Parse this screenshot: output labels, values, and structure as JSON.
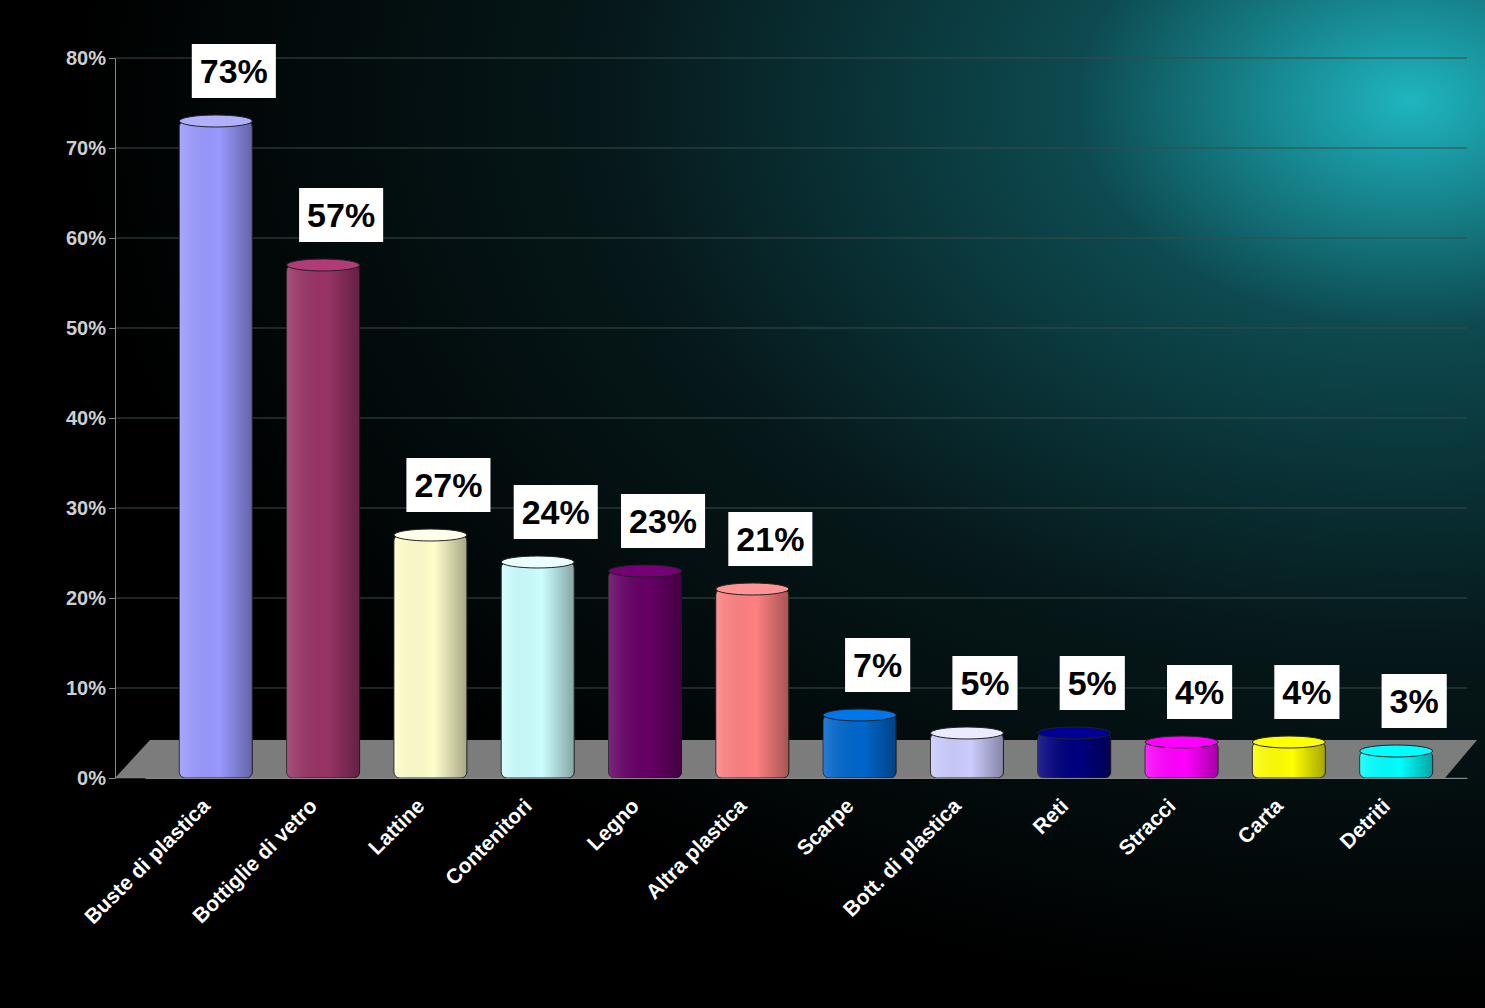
{
  "chart_data": {
    "type": "bar",
    "categories": [
      "Buste di plastica",
      "Bottiglie di vetro",
      "Lattine",
      "Contenitori",
      "Legno",
      "Altra plastica",
      "Scarpe",
      "Bott. di plastica",
      "Reti",
      "Stracci",
      "Carta",
      "Detriti"
    ],
    "values": [
      73,
      57,
      27,
      24,
      23,
      21,
      7,
      5,
      5,
      4,
      4,
      3
    ],
    "value_labels": [
      "73%",
      "57%",
      "27%",
      "24%",
      "23%",
      "21%",
      "7%",
      "5%",
      "5%",
      "4%",
      "4%",
      "3%"
    ],
    "colors": [
      "#9999ff",
      "#993366",
      "#ffffcc",
      "#ccffff",
      "#660066",
      "#ff8080",
      "#0066cc",
      "#ccccff",
      "#000080",
      "#ff00ff",
      "#ffff00",
      "#00ffff"
    ],
    "ylim": [
      0,
      80
    ],
    "yticks": [
      {
        "value": 0,
        "label": "0%"
      },
      {
        "value": 10,
        "label": "10%"
      },
      {
        "value": 20,
        "label": "20%"
      },
      {
        "value": 30,
        "label": "30%"
      },
      {
        "value": 40,
        "label": "40%"
      },
      {
        "value": 50,
        "label": "50%"
      },
      {
        "value": 60,
        "label": "60%"
      },
      {
        "value": 70,
        "label": "70%"
      },
      {
        "value": 80,
        "label": "80%"
      }
    ],
    "grid": true,
    "data_labels": true
  }
}
